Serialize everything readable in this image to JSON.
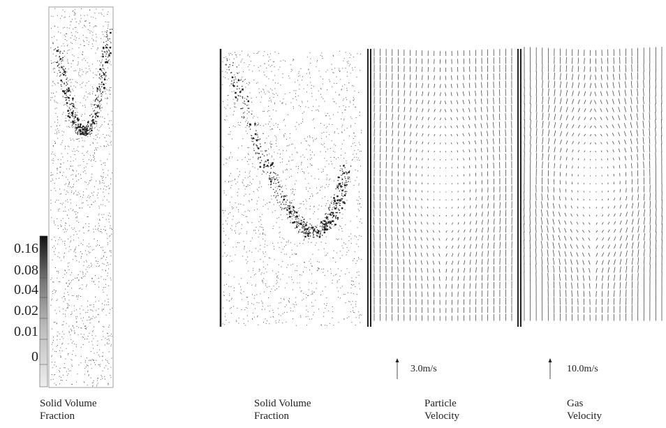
{
  "left_panel": {
    "colorbar": {
      "labels": [
        "0.16",
        "0.08",
        "0.04",
        "0.02",
        "0.01",
        "0"
      ]
    },
    "caption": [
      "Solid Volume",
      "Fraction"
    ]
  },
  "right_panels": [
    {
      "caption": [
        "Solid Volume",
        "Fraction"
      ]
    },
    {
      "caption": [
        "Particle",
        "Velocity"
      ],
      "scale": "3.0m/s"
    },
    {
      "caption": [
        "Gas",
        "Velocity"
      ],
      "scale": "10.0m/s"
    }
  ]
}
